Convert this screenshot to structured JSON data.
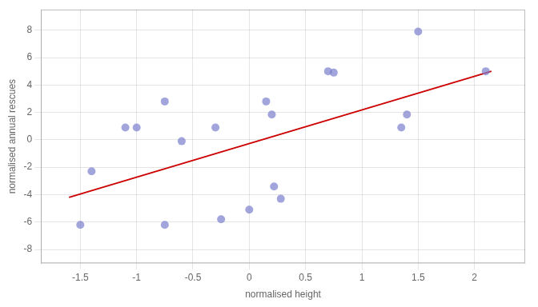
{
  "chart_data": {
    "type": "scatter",
    "xlabel": "normalised height",
    "ylabel": "normalised annual rescues",
    "series": [
      {
        "type": "line",
        "color": "#cc0000",
        "x": [
          -1.6,
          2.15
        ],
        "values": [
          -4.2,
          5.0
        ]
      },
      {
        "type": "scatter",
        "color": "#7b7fcd",
        "x": [
          -1.5,
          -1.4,
          -1.1,
          -1.0,
          -0.75,
          -0.75,
          -0.6,
          -0.3,
          -0.25,
          0.0,
          0.15,
          0.2,
          0.22,
          0.28,
          0.7,
          0.75,
          1.35,
          1.4,
          1.5,
          2.1
        ],
        "values": [
          -6.2,
          -2.3,
          0.9,
          0.9,
          2.8,
          -6.2,
          -0.1,
          0.9,
          -5.8,
          -5.1,
          2.8,
          1.85,
          -3.4,
          -4.3,
          5.0,
          4.9,
          0.9,
          1.85,
          7.9,
          5.0
        ]
      }
    ],
    "xlim": [
      -1.85,
      2.45
    ],
    "ylim": [
      -9.0,
      9.5
    ],
    "xticks": [
      -1.5,
      -1.0,
      -0.5,
      0.0,
      0.5,
      1.0,
      1.5,
      2.0
    ],
    "yticks": [
      -8,
      -6,
      -4,
      -2,
      0,
      2,
      4,
      6,
      8
    ],
    "grid": true
  }
}
